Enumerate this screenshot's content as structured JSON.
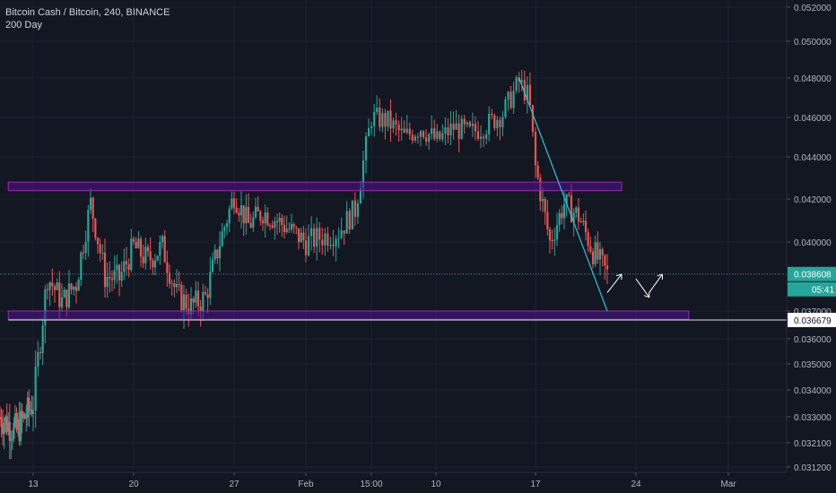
{
  "header": {
    "symbol_line": "Bitcoin Cash / Bitcoin, 240, BINANCE",
    "indicator_line": "200 Day"
  },
  "colors": {
    "background": "#131722",
    "grid": "#1e2230",
    "up": "#26a69a",
    "down": "#ef5350",
    "zone_fill": "#4a148c",
    "zone_stroke": "#9c27b0",
    "trendline": "#26c6da",
    "axis_text": "#b2b5be",
    "last_price_line": "#26a69a",
    "horizontal_line": "#e0e0e0"
  },
  "chart_data": {
    "type": "candlestick",
    "x_tick_labels": [
      "13",
      "20",
      "27",
      "Feb",
      "15:00",
      "10",
      "17",
      "24",
      "Mar"
    ],
    "y_tick_labels": [
      "0.052000",
      "0.050000",
      "0.048000",
      "0.046000",
      "0.044000",
      "0.042000",
      "0.040000",
      "0.037000",
      "0.036000",
      "0.035000",
      "0.034000",
      "0.033000",
      "0.032100",
      "0.031200"
    ],
    "last_price_label": "0.038608",
    "countdown_label": "05:41",
    "horizontal_line_label": "0.036679",
    "zones": [
      {
        "name": "resistance",
        "y_top": 0.0428,
        "y_bottom": 0.0424,
        "x_from": "Jan 10",
        "x_to": "Feb 21"
      },
      {
        "name": "support",
        "y_top": 0.037,
        "y_bottom": 0.0367,
        "x_from": "Jan 10",
        "x_to": "Feb 26"
      }
    ],
    "trendline": {
      "from": [
        "Feb 14",
        0.048
      ],
      "to": [
        "Feb 20",
        0.037
      ]
    },
    "horizontal_line": {
      "y": 0.036679,
      "x_from": "Jan 10"
    },
    "arrows": [
      {
        "from": [
          "Feb 20",
          0.0378
        ],
        "to": [
          "Feb 21",
          0.0386
        ]
      },
      {
        "from": [
          "Feb 22",
          0.0384
        ],
        "to": [
          "Feb 23",
          0.0376
        ]
      },
      {
        "from": [
          "Feb 23",
          0.0378
        ],
        "to": [
          "Feb 24",
          0.0386
        ]
      }
    ],
    "anchors_price": [
      [
        "Jan 9",
        0.033
      ],
      [
        "Jan 11",
        0.0325
      ],
      [
        "Jan 13",
        0.0335
      ],
      [
        "Jan 14",
        0.0385
      ],
      [
        "Jan 15",
        0.0374
      ],
      [
        "Jan 16",
        0.0382
      ],
      [
        "Jan 17",
        0.0418
      ],
      [
        "Jan 18",
        0.0385
      ],
      [
        "Jan 19",
        0.0384
      ],
      [
        "Jan 20",
        0.0398
      ],
      [
        "Jan 21",
        0.0392
      ],
      [
        "Jan 22",
        0.0398
      ],
      [
        "Jan 23",
        0.0377
      ],
      [
        "Jan 24",
        0.0372
      ],
      [
        "Jan 25",
        0.0376
      ],
      [
        "Jan 26",
        0.04
      ],
      [
        "Jan 27",
        0.0422
      ],
      [
        "Jan 28",
        0.0408
      ],
      [
        "Jan 29",
        0.0414
      ],
      [
        "Jan 30",
        0.041
      ],
      [
        "Feb 1",
        0.04
      ],
      [
        "Feb 3",
        0.0405
      ],
      [
        "Feb 4",
        0.0415
      ],
      [
        "Feb 5",
        0.046
      ],
      [
        "Feb 6",
        0.0458
      ],
      [
        "Feb 7",
        0.045
      ],
      [
        "Feb 8",
        0.0455
      ],
      [
        "Feb 9",
        0.0448
      ],
      [
        "Feb 10",
        0.0455
      ],
      [
        "Feb 11",
        0.0452
      ],
      [
        "Feb 12",
        0.0456
      ],
      [
        "Feb 13",
        0.0462
      ],
      [
        "Feb 14",
        0.0478
      ],
      [
        "Feb 14.6",
        0.047
      ],
      [
        "Feb 15",
        0.0435
      ],
      [
        "Feb 16",
        0.04
      ],
      [
        "Feb 17",
        0.0418
      ],
      [
        "Feb 18",
        0.0412
      ],
      [
        "Feb 19",
        0.0396
      ],
      [
        "Feb 20",
        0.0386
      ]
    ]
  }
}
